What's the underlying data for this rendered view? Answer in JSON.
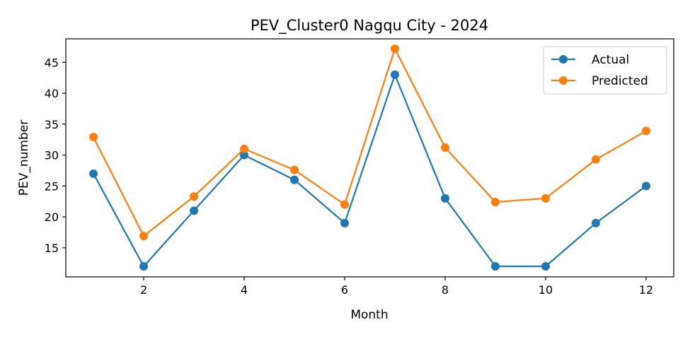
{
  "chart_data": {
    "type": "line",
    "title": "PEV_Cluster0 Nagqu City - 2024",
    "xlabel": "Month",
    "ylabel": "PEV_number",
    "x": [
      1,
      2,
      3,
      4,
      5,
      6,
      7,
      8,
      9,
      10,
      11,
      12
    ],
    "xticks": [
      2,
      4,
      6,
      8,
      10,
      12
    ],
    "yticks": [
      15,
      20,
      25,
      30,
      35,
      40,
      45
    ],
    "xlim": [
      0.45,
      12.55
    ],
    "ylim": [
      10.3,
      48.8
    ],
    "grid": false,
    "legend_position": "top-right",
    "series": [
      {
        "name": "Actual",
        "color": "#1f77b4",
        "values": [
          27,
          12,
          21,
          30,
          26,
          19,
          43,
          23,
          12,
          12,
          19,
          25
        ]
      },
      {
        "name": "Predicted",
        "color": "#ff7f0e",
        "values": [
          32.9,
          16.9,
          23.3,
          31.0,
          27.6,
          22.0,
          47.2,
          31.2,
          22.4,
          23.0,
          29.3,
          33.9
        ]
      }
    ]
  }
}
